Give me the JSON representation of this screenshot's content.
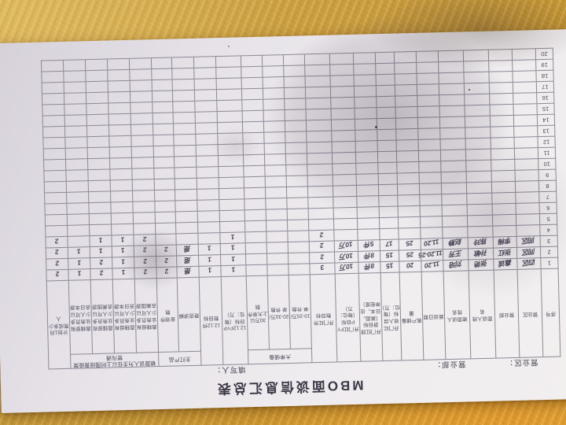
{
  "title": "MBO面谈信息汇总表",
  "meta": {
    "region_label": "营业区：",
    "branch_label": "营业部：",
    "filler_label": "填写人："
  },
  "table": {
    "row_count": 20,
    "groups": {
      "big": {
        "label": "大单储备"
      },
      "main": {
        "label": "主打产品"
      },
      "honor": {
        "label": "被面谈人为主任以上时围绕晋级荣誉沟通"
      }
    },
    "columns": [
      {
        "id": "idx",
        "label": "序号"
      },
      {
        "id": "region",
        "label": "营业区"
      },
      {
        "id": "branch",
        "label": "营业部"
      },
      {
        "id": "interviewer",
        "label": "面谈人姓名"
      },
      {
        "id": "interviewee",
        "label": "被面谈人姓名"
      },
      {
        "id": "date",
        "label": "面谈日期"
      },
      {
        "id": "reserve",
        "label": "客户储备量"
      },
      {
        "id": "income",
        "label": "开门红收入目标（每位：万）"
      },
      {
        "id": "travel",
        "label": "开门红旅游目标（美国、日本、出单密度）"
      },
      {
        "id": "fyp",
        "label": "开门红FYP目标（每位：万）"
      },
      {
        "id": "pieces",
        "label": "开门红件数目标"
      },
      {
        "id": "big10",
        "label": "10-20万/单 件数",
        "group": "big"
      },
      {
        "id": "big20",
        "label": "20-30万/单 件数",
        "group": "big"
      },
      {
        "id": "big30",
        "label": "30万以上大单件数",
        "group": "big"
      },
      {
        "id": "decfyp",
        "label": "12.12FYP目标（每位：万）"
      },
      {
        "id": "decpieces",
        "label": "12.12件数目标"
      },
      {
        "id": "explain",
        "label": "是否讲解",
        "group": "main"
      },
      {
        "id": "jlpieces",
        "label": "金领件数",
        "group": "main"
      },
      {
        "id": "grpus",
        "label": "直辖组有业务员多少人可以去美国游",
        "group": "honor"
      },
      {
        "id": "grpjp",
        "label": "直辖组有业务员多少人可以去日本游",
        "group": "honor"
      },
      {
        "id": "deptus",
        "label": "直辖部有业务员多少人可以去美国游",
        "group": "honor"
      },
      {
        "id": "deptjp",
        "label": "直辖部有业务员多少人可以去日本游",
        "group": "honor"
      },
      {
        "id": "plan",
        "label": "计划1月育成多少人"
      }
    ],
    "rows": [
      {
        "num": 1,
        "cells": {
          "region": "四区",
          "branch": "鑫诚",
          "interviewer": "张艳",
          "interviewee": "刘培",
          "date": "11.20",
          "reserve": "20",
          "income": "15",
          "travel": "8件",
          "fyp": "10万",
          "pieces": "3",
          "decfyp": "1",
          "decpieces": "1",
          "explain": "是",
          "jlpieces": "2",
          "grpus": "2",
          "grpjp": "1",
          "deptus": "2",
          "deptjp": "1",
          "plan": "2"
        }
      },
      {
        "num": 2,
        "cells": {
          "region": "同区",
          "branch": "张红",
          "interviewer": "孙敏",
          "interviewee": "王芳",
          "date": "11.20-25",
          "reserve": "25",
          "income": "15",
          "travel": "8件",
          "fyp": "10万",
          "pieces": "2",
          "decfyp": "1",
          "decpieces": "1",
          "explain": "是",
          "jlpieces": "2",
          "grpus": "2",
          "grpjp": "1",
          "deptus": "2",
          "deptjp": "1",
          "plan": "2"
        }
      },
      {
        "num": 3,
        "cells": {
          "region": "同区",
          "branch": "李梅",
          "interviewer": "陈玲",
          "interviewee": "赵静",
          "date": "11.20",
          "reserve": "25",
          "income": "17",
          "travel": "5件",
          "fyp": "10万",
          "pieces": "2",
          "decfyp": "1",
          "decpieces": "1",
          "explain": "是",
          "jlpieces": "2",
          "grpus": "2",
          "grpjp": "1",
          "deptus": "1",
          "deptjp": "1",
          "plan": "2"
        }
      },
      {
        "num": 4,
        "cells": {
          "pieces": "2",
          "decfyp": "1",
          "grpus": "2",
          "grpjp": "1",
          "deptus": "1",
          "plan": "2"
        }
      }
    ]
  },
  "colors": {
    "tablecloth_gold": "#c89a3c",
    "paper": "#ece8ec",
    "grid_line": "#8e8997",
    "printed_text": "#4f4a59",
    "handwriting": "#4b4658"
  }
}
